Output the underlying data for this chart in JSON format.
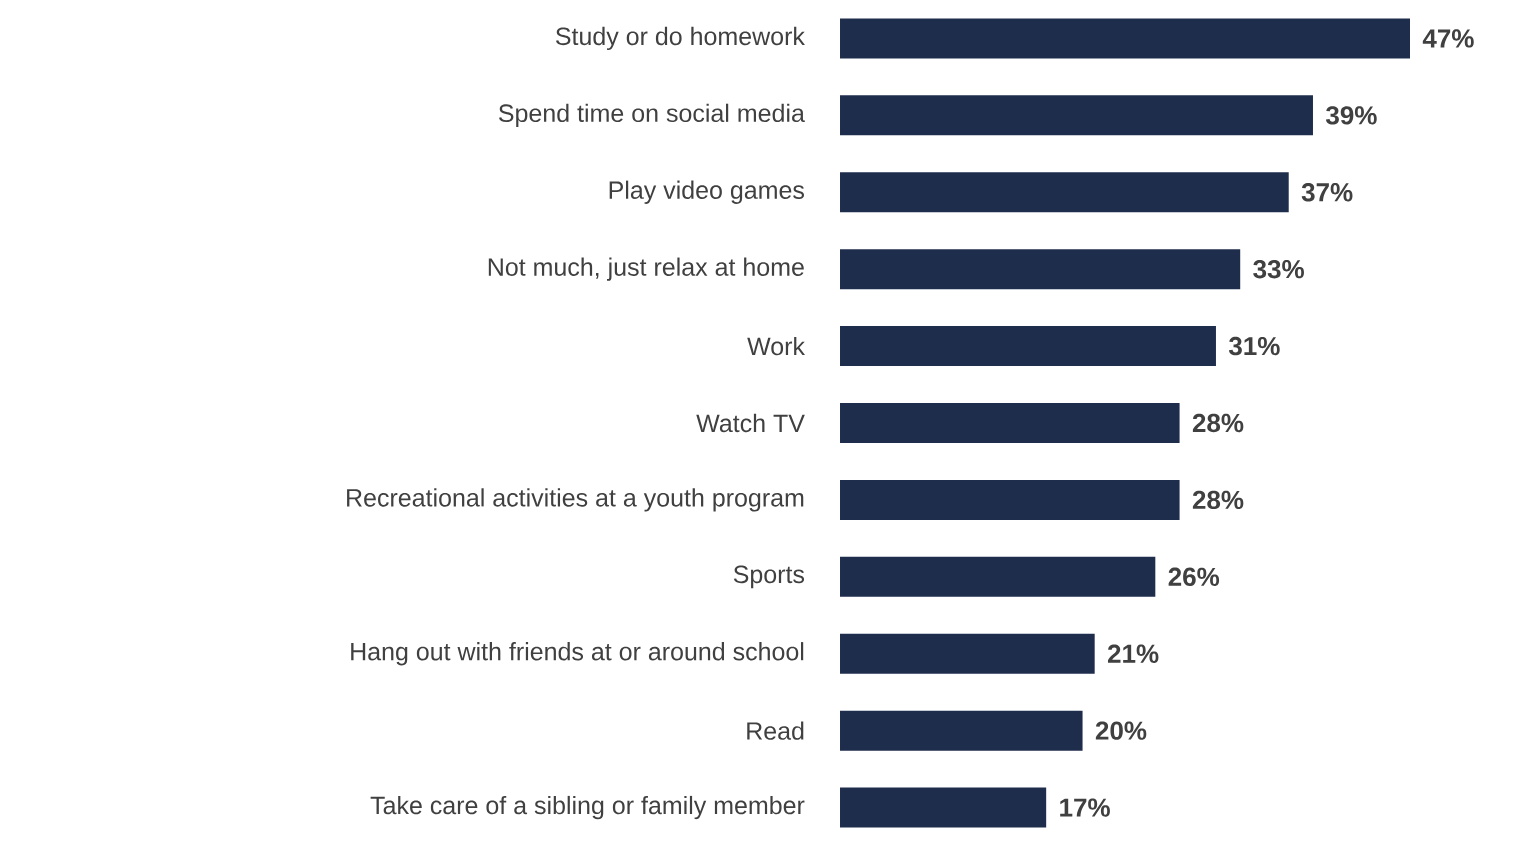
{
  "chart_data": {
    "type": "bar",
    "orientation": "horizontal",
    "categories": [
      "Study or do homework",
      "Spend time on social media",
      "Play video games",
      "Not much, just relax at home",
      "Work",
      "Watch TV",
      "Recreational activities at a youth program",
      "Sports",
      "Hang out with friends at or around school",
      "Read",
      "Take care of a sibling or family member"
    ],
    "values": [
      47,
      39,
      37,
      33,
      31,
      28,
      28,
      26,
      21,
      20,
      17
    ],
    "value_labels": [
      "47%",
      "39%",
      "37%",
      "33%",
      "31%",
      "28%",
      "28%",
      "26%",
      "21%",
      "20%",
      "17%"
    ],
    "color": "#1f2d4d"
  }
}
